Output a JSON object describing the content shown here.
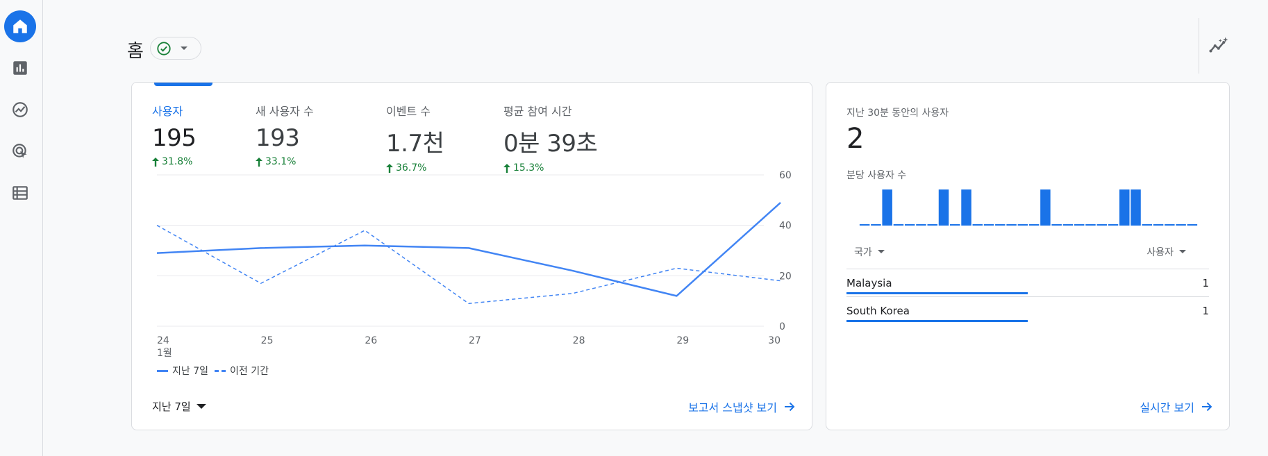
{
  "header": {
    "title": "홈"
  },
  "main_card": {
    "metrics": [
      {
        "label": "사용자",
        "value": "195",
        "change": "31.8%",
        "active": true
      },
      {
        "label": "새 사용자 수",
        "value": "193",
        "change": "33.1%",
        "active": false
      },
      {
        "label": "이벤트 수",
        "value": "1.7천",
        "change": "36.7%",
        "active": false
      },
      {
        "label": "평균 참여 시간",
        "value": "0분 39초",
        "change": "15.3%",
        "active": false
      }
    ],
    "legend": {
      "current": "지난 7일",
      "previous": "이전 기간"
    },
    "date_range": "지난 7일",
    "report_link": "보고서 스냅샷 보기"
  },
  "chart_data": {
    "type": "line",
    "x": [
      "24",
      "25",
      "26",
      "27",
      "28",
      "29",
      "30"
    ],
    "x_sublabel": "1월",
    "y_ticks": [
      0,
      20,
      40,
      60
    ],
    "ylim": [
      0,
      60
    ],
    "series": [
      {
        "name": "지난 7일",
        "style": "solid",
        "color": "#4285f4",
        "values": [
          29,
          31,
          32,
          31,
          22,
          12,
          49
        ]
      },
      {
        "name": "이전 기간",
        "style": "dashed",
        "color": "#4285f4",
        "values": [
          40,
          17,
          38,
          9,
          13,
          23,
          18
        ]
      }
    ]
  },
  "realtime_card": {
    "label": "지난 30분 동안의 사용자",
    "value": "2",
    "per_minute_label": "분당 사용자 수",
    "per_minute": [
      0,
      0,
      1,
      0,
      0,
      0,
      0,
      1,
      0,
      1,
      0,
      0,
      0,
      0,
      0,
      0,
      1,
      0,
      0,
      0,
      0,
      0,
      0,
      1,
      1,
      0,
      0,
      0,
      0,
      0
    ],
    "table": {
      "col_country": "국가",
      "col_users": "사용자",
      "rows": [
        {
          "country": "Malaysia",
          "users": "1",
          "share": 0.5
        },
        {
          "country": "South Korea",
          "users": "1",
          "share": 0.5
        }
      ]
    },
    "realtime_link": "실시간 보기"
  },
  "icons": {
    "rail": [
      "home-icon",
      "reports-icon",
      "explore-icon",
      "advertising-icon",
      "configure-icon"
    ],
    "status": "check-circle-icon",
    "insights": "insights-icon"
  },
  "colors": {
    "accent": "#1a73e8",
    "positive": "#188038",
    "line": "#4285f4"
  }
}
